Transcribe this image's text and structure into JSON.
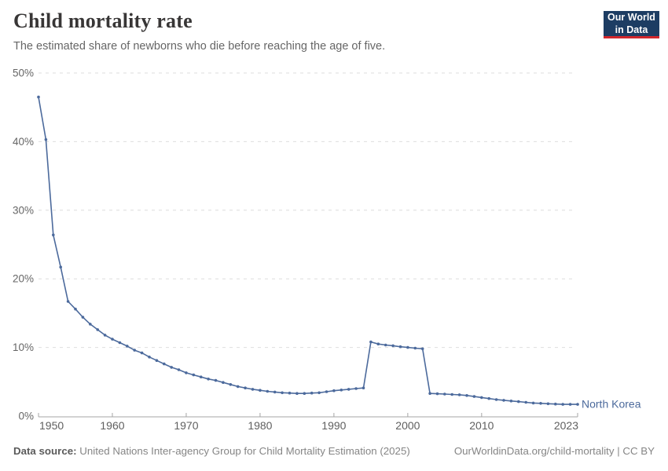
{
  "header": {
    "title": "Child mortality rate",
    "subtitle": "The estimated share of newborns who die before reaching the age of five."
  },
  "logo": {
    "line1": "Our World",
    "line2": "in Data",
    "bg_color": "#1d3d63",
    "bar_color": "#d1272c"
  },
  "footer": {
    "data_source_label": "Data source:",
    "data_source_text": " United Nations Inter-agency Group for Child Mortality Estimation (2025)",
    "link_text": "OurWorldinData.org/child-mortality | CC BY"
  },
  "chart_data": {
    "type": "line",
    "title": "Child mortality rate",
    "xlabel": "",
    "ylabel": "",
    "xlim": [
      1950,
      2023
    ],
    "ylim": [
      0,
      50
    ],
    "yticks": [
      0,
      10,
      20,
      30,
      40,
      50
    ],
    "ytick_suffix": "%",
    "xticks": [
      1950,
      1960,
      1970,
      1980,
      1990,
      2000,
      2010,
      2023
    ],
    "grid": "horizontal-dashed",
    "grid_color": "#dedede",
    "axis_color": "#a5a5a5",
    "tick_label_color": "#5f5f5f",
    "legend_position": "end-of-line-label",
    "series": [
      {
        "name": "North Korea",
        "color": "#4C6A9C",
        "start_year": 1950,
        "end_year": 2023,
        "unit": "%",
        "values": [
          46.5,
          40.3,
          26.4,
          21.7,
          16.7,
          15.6,
          14.4,
          13.4,
          12.6,
          11.8,
          11.2,
          10.7,
          10.2,
          9.6,
          9.2,
          8.6,
          8.1,
          7.6,
          7.1,
          6.75,
          6.3,
          6.0,
          5.7,
          5.4,
          5.2,
          4.9,
          4.6,
          4.3,
          4.1,
          3.9,
          3.75,
          3.6,
          3.5,
          3.4,
          3.35,
          3.3,
          3.3,
          3.35,
          3.4,
          3.55,
          3.7,
          3.8,
          3.9,
          4.0,
          4.1,
          10.8,
          10.5,
          10.35,
          10.25,
          10.1,
          10.0,
          9.9,
          9.8,
          3.3,
          3.25,
          3.2,
          3.15,
          3.1,
          3.0,
          2.85,
          2.7,
          2.55,
          2.4,
          2.3,
          2.2,
          2.1,
          2.0,
          1.9,
          1.85,
          1.8,
          1.75,
          1.7,
          1.7,
          1.7
        ]
      }
    ]
  }
}
